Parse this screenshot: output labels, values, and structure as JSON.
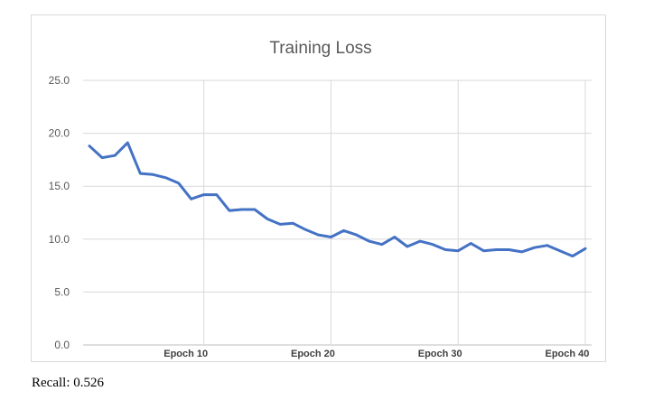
{
  "chart_data": {
    "type": "line",
    "title": "Training Loss",
    "xlabel": "",
    "ylabel": "",
    "ylim": [
      0,
      25
    ],
    "yticks": [
      "0.0",
      "5.0",
      "10.0",
      "15.0",
      "20.0",
      "25.0"
    ],
    "xticks": [
      {
        "epoch": 10,
        "label": "Epoch 10"
      },
      {
        "epoch": 20,
        "label": "Epoch 20"
      },
      {
        "epoch": 30,
        "label": "Epoch 30"
      },
      {
        "epoch": 40,
        "label": "Epoch 40"
      }
    ],
    "grid": true,
    "x": [
      1,
      2,
      3,
      4,
      5,
      6,
      7,
      8,
      9,
      10,
      11,
      12,
      13,
      14,
      15,
      16,
      17,
      18,
      19,
      20,
      21,
      22,
      23,
      24,
      25,
      26,
      27,
      28,
      29,
      30,
      31,
      32,
      33,
      34,
      35,
      36,
      37,
      38,
      39,
      40
    ],
    "series": [
      {
        "color": "#4472c4",
        "values": [
          18.8,
          17.7,
          17.9,
          19.1,
          16.2,
          16.1,
          15.8,
          15.3,
          13.8,
          14.2,
          14.2,
          12.7,
          12.8,
          12.8,
          11.9,
          11.4,
          11.5,
          10.9,
          10.4,
          10.2,
          10.8,
          10.4,
          9.8,
          9.5,
          10.2,
          9.3,
          9.8,
          9.5,
          9.0,
          8.9,
          9.6,
          8.9,
          9.0,
          9.0,
          8.8,
          9.2,
          9.4,
          8.9,
          8.4,
          9.1
        ]
      }
    ]
  },
  "caption": "Recall: 0.526"
}
